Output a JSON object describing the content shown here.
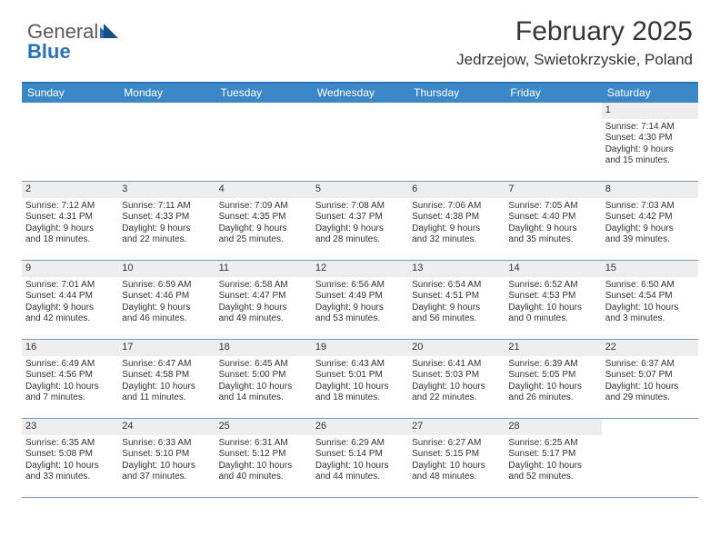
{
  "logo": {
    "word1": "General",
    "word2": "Blue"
  },
  "title": "February 2025",
  "location": "Jedrzejow, Swietokrzyskie, Poland",
  "colors": {
    "header_bar": "#3b87c8",
    "top_rule": "#2a71b8",
    "row_rule": "#7a98b8",
    "daynum_bg": "#eeeeee",
    "logo_grey": "#5a5a5a",
    "logo_blue": "#2a71b8",
    "triangle1": "#2a71b8",
    "triangle2": "#1a4e86"
  },
  "dow": [
    "Sunday",
    "Monday",
    "Tuesday",
    "Wednesday",
    "Thursday",
    "Friday",
    "Saturday"
  ],
  "weeks": [
    [
      null,
      null,
      null,
      null,
      null,
      null,
      {
        "n": "1",
        "sr": "Sunrise: 7:14 AM",
        "ss": "Sunset: 4:30 PM",
        "d1": "Daylight: 9 hours",
        "d2": "and 15 minutes."
      }
    ],
    [
      {
        "n": "2",
        "sr": "Sunrise: 7:12 AM",
        "ss": "Sunset: 4:31 PM",
        "d1": "Daylight: 9 hours",
        "d2": "and 18 minutes."
      },
      {
        "n": "3",
        "sr": "Sunrise: 7:11 AM",
        "ss": "Sunset: 4:33 PM",
        "d1": "Daylight: 9 hours",
        "d2": "and 22 minutes."
      },
      {
        "n": "4",
        "sr": "Sunrise: 7:09 AM",
        "ss": "Sunset: 4:35 PM",
        "d1": "Daylight: 9 hours",
        "d2": "and 25 minutes."
      },
      {
        "n": "5",
        "sr": "Sunrise: 7:08 AM",
        "ss": "Sunset: 4:37 PM",
        "d1": "Daylight: 9 hours",
        "d2": "and 28 minutes."
      },
      {
        "n": "6",
        "sr": "Sunrise: 7:06 AM",
        "ss": "Sunset: 4:38 PM",
        "d1": "Daylight: 9 hours",
        "d2": "and 32 minutes."
      },
      {
        "n": "7",
        "sr": "Sunrise: 7:05 AM",
        "ss": "Sunset: 4:40 PM",
        "d1": "Daylight: 9 hours",
        "d2": "and 35 minutes."
      },
      {
        "n": "8",
        "sr": "Sunrise: 7:03 AM",
        "ss": "Sunset: 4:42 PM",
        "d1": "Daylight: 9 hours",
        "d2": "and 39 minutes."
      }
    ],
    [
      {
        "n": "9",
        "sr": "Sunrise: 7:01 AM",
        "ss": "Sunset: 4:44 PM",
        "d1": "Daylight: 9 hours",
        "d2": "and 42 minutes."
      },
      {
        "n": "10",
        "sr": "Sunrise: 6:59 AM",
        "ss": "Sunset: 4:46 PM",
        "d1": "Daylight: 9 hours",
        "d2": "and 46 minutes."
      },
      {
        "n": "11",
        "sr": "Sunrise: 6:58 AM",
        "ss": "Sunset: 4:47 PM",
        "d1": "Daylight: 9 hours",
        "d2": "and 49 minutes."
      },
      {
        "n": "12",
        "sr": "Sunrise: 6:56 AM",
        "ss": "Sunset: 4:49 PM",
        "d1": "Daylight: 9 hours",
        "d2": "and 53 minutes."
      },
      {
        "n": "13",
        "sr": "Sunrise: 6:54 AM",
        "ss": "Sunset: 4:51 PM",
        "d1": "Daylight: 9 hours",
        "d2": "and 56 minutes."
      },
      {
        "n": "14",
        "sr": "Sunrise: 6:52 AM",
        "ss": "Sunset: 4:53 PM",
        "d1": "Daylight: 10 hours",
        "d2": "and 0 minutes."
      },
      {
        "n": "15",
        "sr": "Sunrise: 6:50 AM",
        "ss": "Sunset: 4:54 PM",
        "d1": "Daylight: 10 hours",
        "d2": "and 3 minutes."
      }
    ],
    [
      {
        "n": "16",
        "sr": "Sunrise: 6:49 AM",
        "ss": "Sunset: 4:56 PM",
        "d1": "Daylight: 10 hours",
        "d2": "and 7 minutes."
      },
      {
        "n": "17",
        "sr": "Sunrise: 6:47 AM",
        "ss": "Sunset: 4:58 PM",
        "d1": "Daylight: 10 hours",
        "d2": "and 11 minutes."
      },
      {
        "n": "18",
        "sr": "Sunrise: 6:45 AM",
        "ss": "Sunset: 5:00 PM",
        "d1": "Daylight: 10 hours",
        "d2": "and 14 minutes."
      },
      {
        "n": "19",
        "sr": "Sunrise: 6:43 AM",
        "ss": "Sunset: 5:01 PM",
        "d1": "Daylight: 10 hours",
        "d2": "and 18 minutes."
      },
      {
        "n": "20",
        "sr": "Sunrise: 6:41 AM",
        "ss": "Sunset: 5:03 PM",
        "d1": "Daylight: 10 hours",
        "d2": "and 22 minutes."
      },
      {
        "n": "21",
        "sr": "Sunrise: 6:39 AM",
        "ss": "Sunset: 5:05 PM",
        "d1": "Daylight: 10 hours",
        "d2": "and 26 minutes."
      },
      {
        "n": "22",
        "sr": "Sunrise: 6:37 AM",
        "ss": "Sunset: 5:07 PM",
        "d1": "Daylight: 10 hours",
        "d2": "and 29 minutes."
      }
    ],
    [
      {
        "n": "23",
        "sr": "Sunrise: 6:35 AM",
        "ss": "Sunset: 5:08 PM",
        "d1": "Daylight: 10 hours",
        "d2": "and 33 minutes."
      },
      {
        "n": "24",
        "sr": "Sunrise: 6:33 AM",
        "ss": "Sunset: 5:10 PM",
        "d1": "Daylight: 10 hours",
        "d2": "and 37 minutes."
      },
      {
        "n": "25",
        "sr": "Sunrise: 6:31 AM",
        "ss": "Sunset: 5:12 PM",
        "d1": "Daylight: 10 hours",
        "d2": "and 40 minutes."
      },
      {
        "n": "26",
        "sr": "Sunrise: 6:29 AM",
        "ss": "Sunset: 5:14 PM",
        "d1": "Daylight: 10 hours",
        "d2": "and 44 minutes."
      },
      {
        "n": "27",
        "sr": "Sunrise: 6:27 AM",
        "ss": "Sunset: 5:15 PM",
        "d1": "Daylight: 10 hours",
        "d2": "and 48 minutes."
      },
      {
        "n": "28",
        "sr": "Sunrise: 6:25 AM",
        "ss": "Sunset: 5:17 PM",
        "d1": "Daylight: 10 hours",
        "d2": "and 52 minutes."
      },
      null
    ]
  ]
}
